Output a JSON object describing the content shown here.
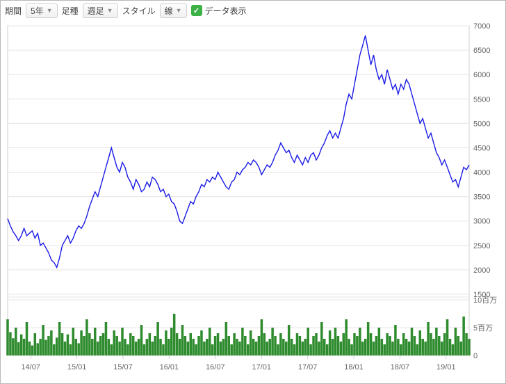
{
  "toolbar": {
    "period_label": "期間",
    "period_value": "5年",
    "candle_label": "足種",
    "candle_value": "週足",
    "style_label": "スタイル",
    "style_value": "線",
    "show_data_label": "データ表示",
    "show_data_checked": true
  },
  "chart": {
    "type": "line+volume",
    "background": "#ffffff",
    "grid_color": "#e5e5e5",
    "frame_color": "#cfcfcf",
    "line_color": "#1a1ae6",
    "volume_color": "#2e8b2e",
    "price_ylim": [
      1500,
      7000
    ],
    "price_yticks": [
      1500,
      2000,
      2500,
      3000,
      3500,
      4000,
      4500,
      5000,
      5500,
      6000,
      6500,
      7000
    ],
    "volume_ylim": [
      0,
      10000000
    ],
    "volume_yticks": [
      {
        "v": 0,
        "label": "0"
      },
      {
        "v": 5000000,
        "label": "5百万"
      },
      {
        "v": 10000000,
        "label": "10百万"
      }
    ],
    "x_labels": [
      "14/07",
      "15/01",
      "15/07",
      "16/01",
      "16/07",
      "17/01",
      "17/07",
      "18/01",
      "18/07",
      "19/01"
    ],
    "price_series": [
      3050,
      2900,
      2780,
      2700,
      2600,
      2700,
      2850,
      2700,
      2750,
      2800,
      2650,
      2750,
      2500,
      2550,
      2450,
      2350,
      2200,
      2150,
      2050,
      2250,
      2500,
      2600,
      2700,
      2550,
      2650,
      2800,
      2900,
      2850,
      2950,
      3100,
      3300,
      3450,
      3600,
      3500,
      3700,
      3900,
      4100,
      4300,
      4500,
      4300,
      4100,
      4000,
      4200,
      4100,
      3900,
      3800,
      3650,
      3850,
      3750,
      3600,
      3650,
      3800,
      3700,
      3900,
      3850,
      3750,
      3600,
      3650,
      3500,
      3550,
      3400,
      3350,
      3200,
      3000,
      2950,
      3100,
      3250,
      3400,
      3350,
      3500,
      3600,
      3750,
      3700,
      3850,
      3800,
      3900,
      3850,
      4000,
      3900,
      3800,
      3700,
      3650,
      3800,
      3850,
      4000,
      3950,
      4050,
      4100,
      4200,
      4150,
      4250,
      4200,
      4100,
      3950,
      4050,
      4150,
      4100,
      4200,
      4350,
      4450,
      4600,
      4500,
      4400,
      4450,
      4300,
      4200,
      4350,
      4250,
      4150,
      4300,
      4200,
      4350,
      4400,
      4250,
      4350,
      4500,
      4600,
      4750,
      4850,
      4700,
      4800,
      4700,
      4900,
      5100,
      5400,
      5600,
      5500,
      5800,
      6100,
      6400,
      6600,
      6800,
      6500,
      6200,
      6400,
      6100,
      5900,
      6000,
      5800,
      6100,
      5900,
      5700,
      5800,
      5600,
      5800,
      5700,
      5900,
      5800,
      5600,
      5400,
      5200,
      5000,
      5100,
      4900,
      4700,
      4800,
      4600,
      4400,
      4300,
      4150,
      4250,
      4100,
      3950,
      3800,
      3850,
      3700,
      3900,
      4100,
      4050,
      4150
    ],
    "volume_series": [
      6.5,
      4.2,
      3.1,
      5.0,
      2.4,
      3.8,
      3.0,
      6.0,
      2.5,
      1.8,
      4.0,
      2.2,
      3.0,
      5.5,
      2.8,
      3.5,
      4.5,
      2.0,
      3.2,
      6.0,
      4.0,
      2.5,
      3.8,
      2.0,
      5.0,
      3.0,
      2.2,
      4.5,
      3.5,
      6.5,
      4.0,
      3.0,
      5.0,
      2.5,
      3.5,
      4.0,
      6.0,
      3.0,
      2.0,
      4.5,
      3.5,
      2.5,
      5.0,
      3.0,
      2.0,
      4.0,
      3.5,
      2.5,
      3.0,
      5.5,
      2.0,
      3.0,
      4.0,
      2.5,
      3.5,
      6.0,
      3.0,
      2.0,
      4.5,
      3.0,
      5.0,
      7.5,
      4.0,
      3.0,
      5.5,
      3.5,
      2.5,
      4.0,
      3.0,
      2.0,
      3.5,
      4.5,
      2.5,
      3.0,
      5.0,
      2.0,
      3.5,
      4.0,
      2.5,
      3.0,
      6.0,
      3.5,
      2.0,
      4.0,
      3.0,
      2.5,
      5.0,
      3.5,
      2.0,
      4.5,
      3.0,
      2.5,
      3.5,
      6.5,
      4.0,
      2.5,
      3.0,
      5.0,
      3.5,
      2.0,
      4.0,
      3.0,
      2.5,
      5.5,
      3.0,
      2.0,
      4.0,
      3.5,
      2.5,
      3.0,
      5.0,
      2.0,
      3.5,
      4.0,
      2.5,
      6.0,
      3.0,
      2.0,
      4.5,
      3.0,
      5.0,
      3.5,
      2.5,
      4.0,
      6.5,
      3.0,
      2.0,
      4.0,
      3.5,
      5.0,
      2.5,
      3.0,
      6.0,
      4.0,
      2.5,
      3.5,
      5.0,
      3.0,
      2.0,
      4.0,
      3.5,
      2.5,
      5.5,
      3.0,
      2.0,
      4.0,
      3.0,
      2.5,
      5.0,
      3.5,
      2.0,
      4.5,
      3.0,
      2.5,
      6.0,
      4.0,
      3.0,
      5.0,
      3.5,
      2.5,
      4.0,
      6.5,
      3.0,
      2.0,
      5.0,
      3.5,
      2.5,
      7.0,
      4.0,
      3.0
    ],
    "axis_label_color": "#666666",
    "axis_label_fontsize": 11
  }
}
